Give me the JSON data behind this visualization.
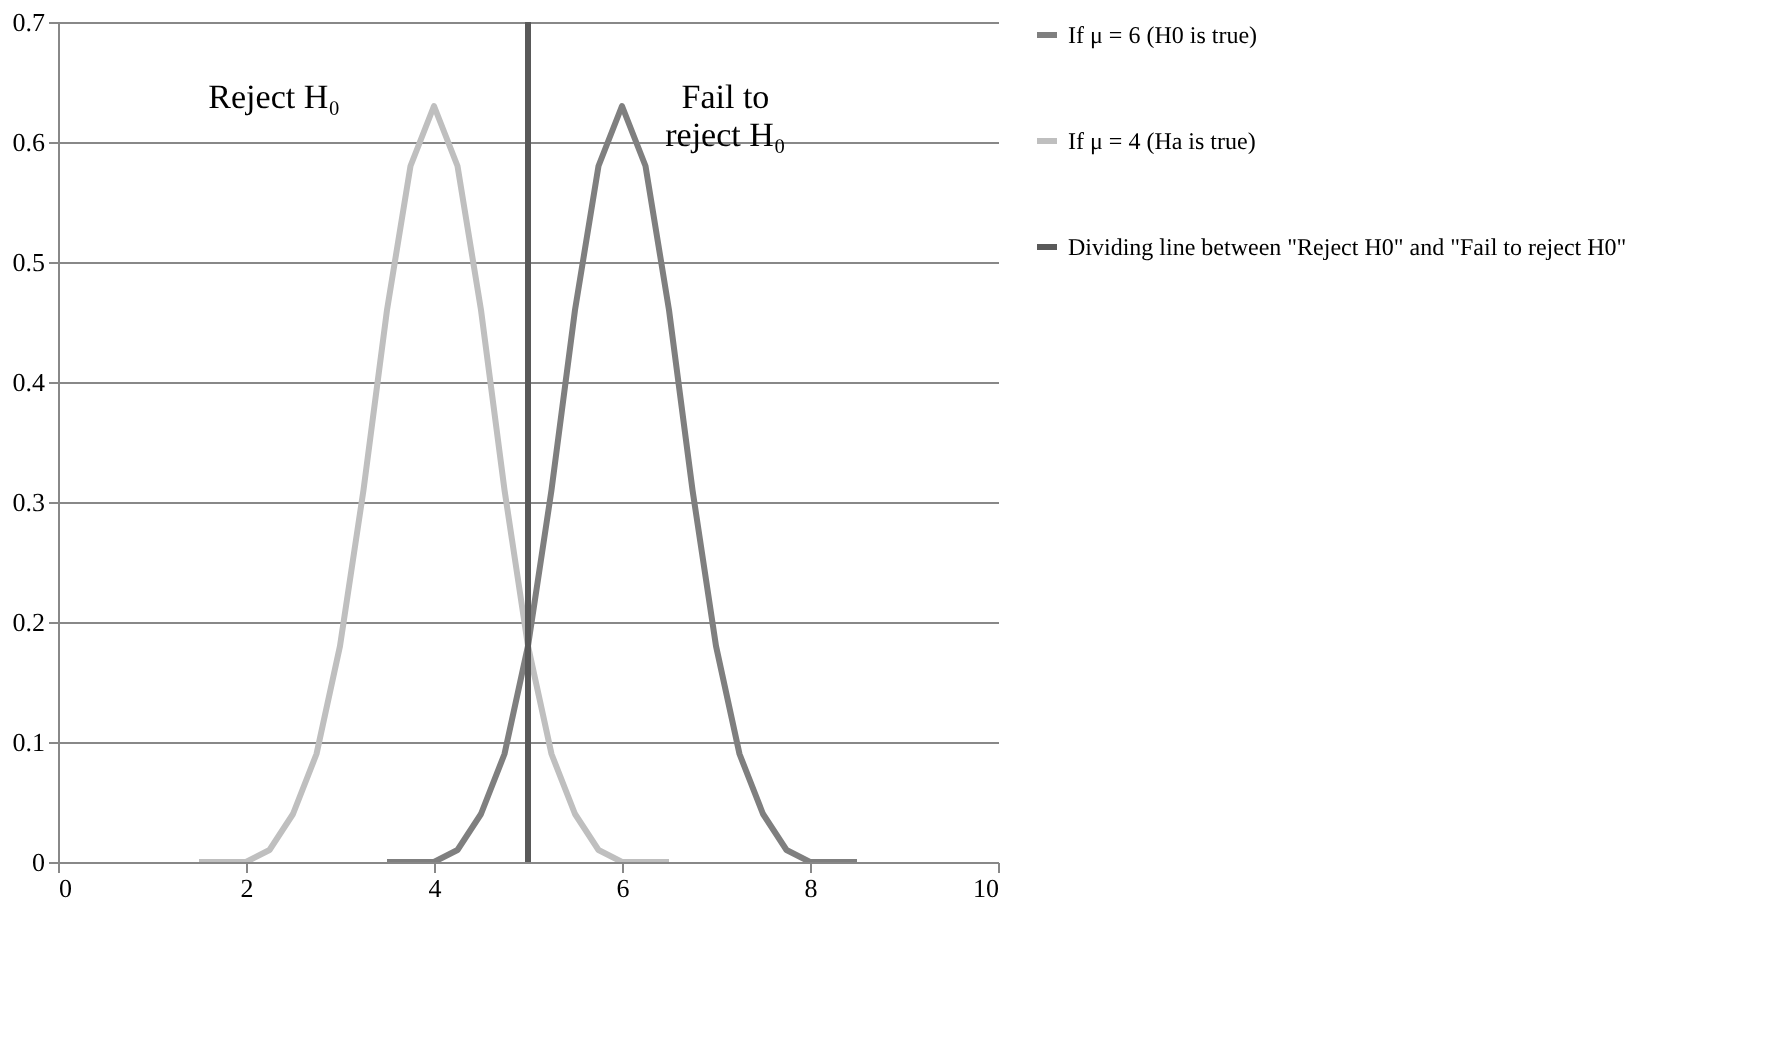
{
  "chart_data": {
    "type": "line",
    "xlim": [
      0,
      10
    ],
    "xticks": [
      0,
      2,
      4,
      6,
      8,
      10
    ],
    "ylim": [
      0,
      0.7
    ],
    "yticks": [
      0,
      0.1,
      0.2,
      0.3,
      0.4,
      0.5,
      0.6,
      0.7
    ],
    "grid": "y",
    "legend": "right",
    "marker": "none",
    "line_style": "solid",
    "series": [
      {
        "name": "If μ = 6 (H0 is true)",
        "color": "#7f7f7f",
        "x": [
          3.5,
          3.75,
          4,
          4.25,
          4.5,
          4.75,
          5,
          5.25,
          5.5,
          5.75,
          6,
          6.25,
          6.5,
          6.75,
          7,
          7.25,
          7.5,
          7.75,
          8,
          8.25,
          8.5
        ],
        "values": [
          0,
          0,
          0,
          0.01,
          0.04,
          0.09,
          0.18,
          0.31,
          0.46,
          0.58,
          0.63,
          0.58,
          0.46,
          0.31,
          0.18,
          0.09,
          0.04,
          0.01,
          0,
          0,
          0
        ]
      },
      {
        "name": "If μ = 4 (Ha is true)",
        "color": "#bfbfbf",
        "x": [
          1.5,
          1.75,
          2,
          2.25,
          2.5,
          2.75,
          3,
          3.25,
          3.5,
          3.75,
          4,
          4.25,
          4.5,
          4.75,
          5,
          5.25,
          5.5,
          5.75,
          6,
          6.25,
          6.5
        ],
        "values": [
          0,
          0,
          0,
          0.01,
          0.04,
          0.09,
          0.18,
          0.31,
          0.46,
          0.58,
          0.63,
          0.58,
          0.46,
          0.31,
          0.18,
          0.09,
          0.04,
          0.01,
          0,
          0,
          0
        ]
      },
      {
        "name": "Dividing line between \"Reject H0\" and \"Fail to reject H0\"",
        "color": "#595959",
        "x": [
          5,
          5
        ],
        "values": [
          0,
          0.7
        ]
      }
    ],
    "annotations": [
      "Reject H₀",
      "Fail to\nreject H₀"
    ]
  }
}
